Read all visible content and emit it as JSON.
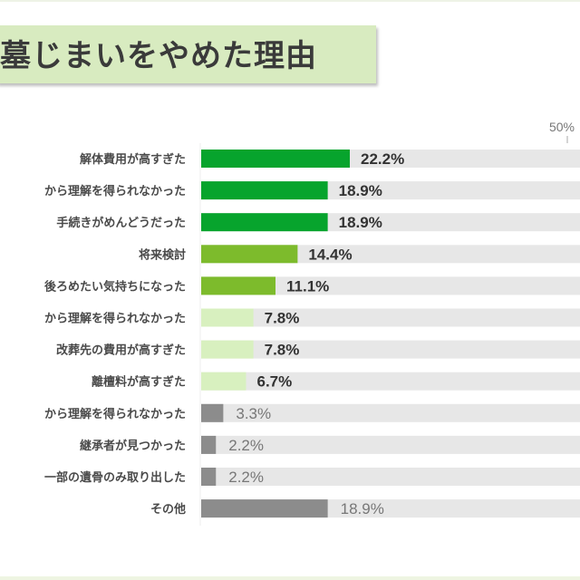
{
  "chart_data": {
    "type": "bar",
    "orientation": "horizontal",
    "title": "墓じまいをやめた理由",
    "categories": [
      "解体費用が高すぎた",
      "から理解を得られなかった",
      "手続きがめんどうだった",
      "将来検討",
      "後ろめたい気持ちになった",
      "から理解を得られなかった",
      "改葬先の費用が高すぎた",
      "離檀料が高すぎた",
      "から理解を得られなかった",
      "継承者が見つかった",
      "一部の遺骨のみ取り出した",
      "その他"
    ],
    "values": [
      22.2,
      18.9,
      18.9,
      14.4,
      11.1,
      7.8,
      7.8,
      6.7,
      3.3,
      2.2,
      2.2,
      18.9
    ],
    "value_labels": [
      "22.2%",
      "18.9%",
      "18.9%",
      "14.4%",
      "11.1%",
      "7.8%",
      "7.8%",
      "6.7%",
      "3.3%",
      "2.2%",
      "2.2%",
      "18.9%"
    ],
    "xlim": [
      0,
      50
    ],
    "tick_labels": [
      "50%"
    ],
    "grid": false,
    "colors": {
      "bars": [
        "#07a42d",
        "#07a42d",
        "#07a42d",
        "#7dbb2c",
        "#7dbb2c",
        "#d8f0bf",
        "#d8f0bf",
        "#d8f0bf",
        "#8c8c8c",
        "#8c8c8c",
        "#8c8c8c",
        "#8c8c8c"
      ],
      "track": "#e7e7e7",
      "title_bg": "#d8ebc0"
    }
  }
}
